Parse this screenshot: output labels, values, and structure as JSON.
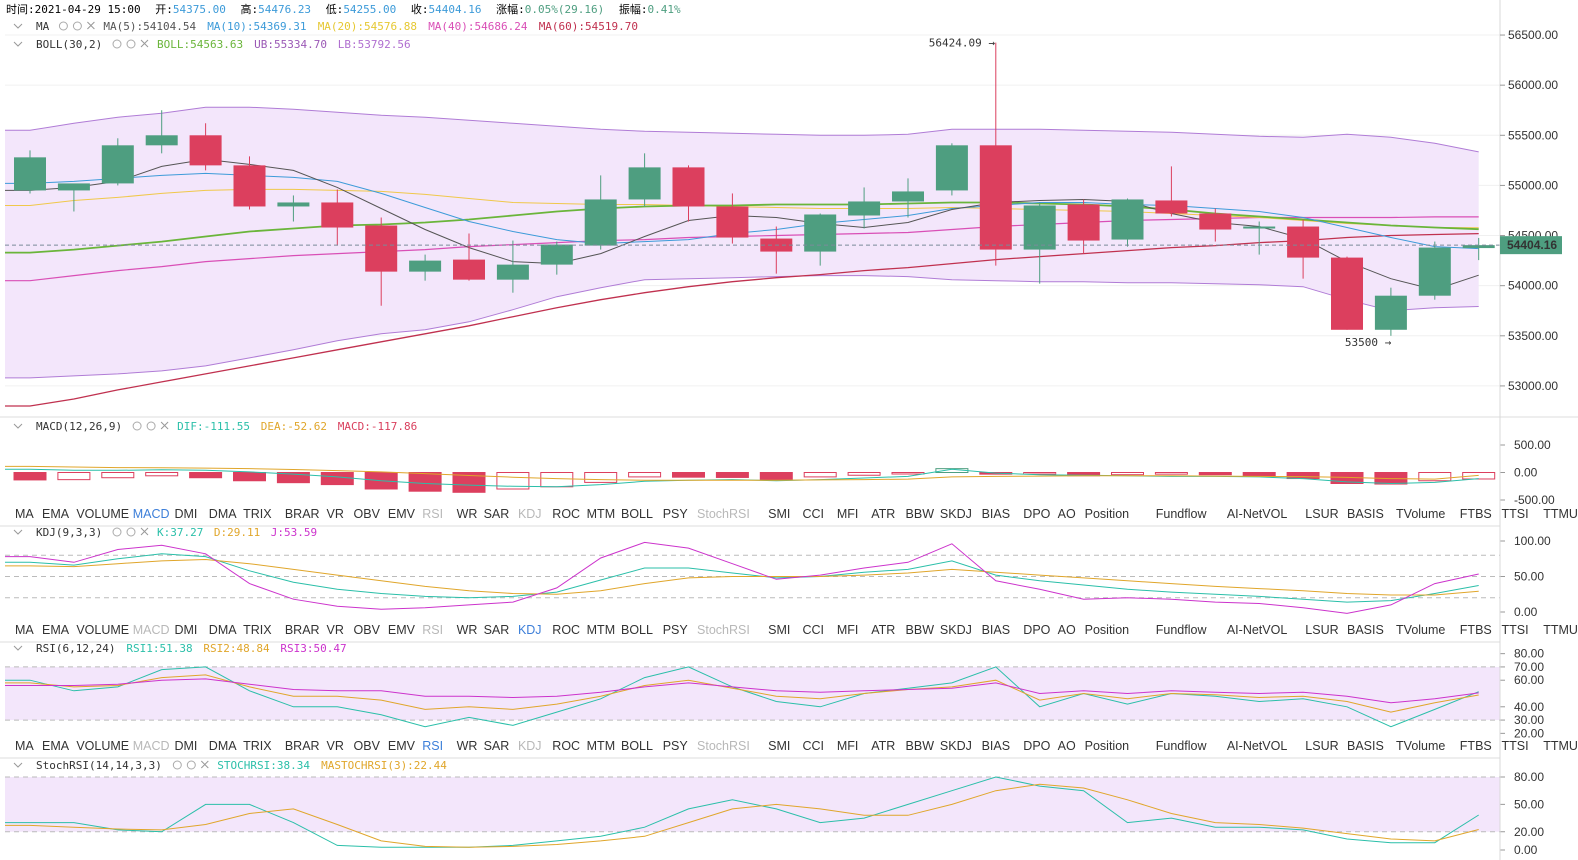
{
  "header": {
    "time_label": "时间:",
    "time": "2021-04-29 15:00",
    "open_label": "开:",
    "open": "54375.00",
    "high_label": "高:",
    "high": "54476.23",
    "low_label": "低:",
    "low": "54255.00",
    "close_label": "收:",
    "close": "54404.16",
    "change_label": "涨幅:",
    "change": "0.05%(29.16)",
    "amplitude_label": "振幅:",
    "amplitude": "0.41%"
  },
  "ma_legend": {
    "name": "MA",
    "items": [
      {
        "text": "MA(5):54104.54",
        "color": "#555555"
      },
      {
        "text": "MA(10):54369.31",
        "color": "#3d9bd9"
      },
      {
        "text": "MA(20):54576.88",
        "color": "#e6c832"
      },
      {
        "text": "MA(40):54686.24",
        "color": "#d94fb6"
      },
      {
        "text": "MA(60):54519.70",
        "color": "#c0314f"
      }
    ]
  },
  "boll_legend": {
    "name": "BOLL(30,2)",
    "items": [
      {
        "text": "BOLL:54563.63",
        "color": "#6ab53a"
      },
      {
        "text": "UB:55334.70",
        "color": "#9b59b6"
      },
      {
        "text": "LB:53792.56",
        "color": "#b06fd0"
      }
    ]
  },
  "price_axis": {
    "ticks": [
      "56500.00",
      "56000.00",
      "55500.00",
      "55000.00",
      "54500.00",
      "54000.00",
      "53500.00",
      "53000.00"
    ],
    "current_price": "54404.16",
    "high_marker": "56424.09 →",
    "low_marker": "53500 →"
  },
  "macd_legend": {
    "name": "MACD(12,26,9)",
    "items": [
      {
        "text": "DIF:-111.55",
        "color": "#2bbfa9"
      },
      {
        "text": "DEA:-52.62",
        "color": "#e0a62b"
      },
      {
        "text": "MACD:-117.86",
        "color": "#d93f5d"
      }
    ],
    "axis": [
      "500.00",
      "0.00",
      "-500.00"
    ]
  },
  "kdj_legend": {
    "name": "KDJ(9,3,3)",
    "items": [
      {
        "text": "K:37.27",
        "color": "#2bbfa9"
      },
      {
        "text": "D:29.11",
        "color": "#e0a62b"
      },
      {
        "text": "J:53.59",
        "color": "#cc33cc"
      }
    ],
    "axis": [
      "100.00",
      "50.00",
      "0.00"
    ]
  },
  "rsi_legend": {
    "name": "RSI(6,12,24)",
    "items": [
      {
        "text": "RSI1:51.38",
        "color": "#2bbfa9"
      },
      {
        "text": "RSI2:48.84",
        "color": "#e0a62b"
      },
      {
        "text": "RSI3:50.47",
        "color": "#cc33cc"
      }
    ],
    "axis": [
      "80.00",
      "70.00",
      "60.00",
      "40.00",
      "30.00",
      "20.00"
    ]
  },
  "stochrsi_legend": {
    "name": "StochRSI(14,14,3,3)",
    "items": [
      {
        "text": "STOCHRSI:38.34",
        "color": "#2bbfa9"
      },
      {
        "text": "MASTOCHRSI(3):22.44",
        "color": "#e0a62b"
      }
    ],
    "axis": [
      "80.00",
      "50.00",
      "20.00",
      "0.00"
    ]
  },
  "indicator_tabs": [
    "MA",
    "EMA",
    "VOLUME",
    "MACD",
    "DMI",
    "DMA",
    "TRIX",
    "BRAR",
    "VR",
    "OBV",
    "EMV",
    "RSI",
    "WR",
    "SAR",
    "KDJ",
    "ROC",
    "MTM",
    "BOLL",
    "PSY",
    "StochRSI",
    "SMI",
    "CCI",
    "MFI",
    "ATR",
    "BBW",
    "SKDJ",
    "BIAS",
    "DPO",
    "AO",
    "Position",
    "Fundflow",
    "AI-NetVOL",
    "LSUR",
    "BASIS",
    "TVolume",
    "FTBS",
    "TTSI",
    "TTMU"
  ],
  "tab_rows": [
    {
      "active": "MACD",
      "disabled": [
        "RSI",
        "KDJ",
        "StochRSI"
      ]
    },
    {
      "active": "KDJ",
      "disabled": [
        "MACD",
        "RSI",
        "StochRSI"
      ]
    },
    {
      "active": "RSI",
      "disabled": [
        "MACD",
        "KDJ",
        "StochRSI"
      ]
    }
  ],
  "colors": {
    "up": "#4e9e80",
    "down": "#dc3f5e",
    "band_fill": "#f3e6fb",
    "accent": "#3d7fd9"
  },
  "chart_data": {
    "type": "candlestick",
    "candles": [
      {
        "o": 54950,
        "h": 55350,
        "l": 54920,
        "c": 55280
      },
      {
        "o": 54950,
        "h": 55010,
        "l": 54740,
        "c": 55020
      },
      {
        "o": 55020,
        "h": 55470,
        "l": 55000,
        "c": 55400
      },
      {
        "o": 55400,
        "h": 55750,
        "l": 55320,
        "c": 55500
      },
      {
        "o": 55500,
        "h": 55620,
        "l": 55150,
        "c": 55200
      },
      {
        "o": 55200,
        "h": 55290,
        "l": 54760,
        "c": 54790
      },
      {
        "o": 54790,
        "h": 54900,
        "l": 54640,
        "c": 54830
      },
      {
        "o": 54830,
        "h": 54960,
        "l": 54400,
        "c": 54580
      },
      {
        "o": 54600,
        "h": 54680,
        "l": 53800,
        "c": 54140
      },
      {
        "o": 54140,
        "h": 54310,
        "l": 54050,
        "c": 54250
      },
      {
        "o": 54260,
        "h": 54520,
        "l": 54050,
        "c": 54060
      },
      {
        "o": 54060,
        "h": 54450,
        "l": 53930,
        "c": 54210
      },
      {
        "o": 54210,
        "h": 54440,
        "l": 54110,
        "c": 54410
      },
      {
        "o": 54400,
        "h": 55100,
        "l": 54360,
        "c": 54860
      },
      {
        "o": 54860,
        "h": 55320,
        "l": 54790,
        "c": 55180
      },
      {
        "o": 55180,
        "h": 55200,
        "l": 54640,
        "c": 54790
      },
      {
        "o": 54790,
        "h": 54920,
        "l": 54420,
        "c": 54480
      },
      {
        "o": 54470,
        "h": 54590,
        "l": 54120,
        "c": 54340
      },
      {
        "o": 54340,
        "h": 54720,
        "l": 54200,
        "c": 54710
      },
      {
        "o": 54700,
        "h": 54980,
        "l": 54570,
        "c": 54840
      },
      {
        "o": 54840,
        "h": 55070,
        "l": 54680,
        "c": 54940
      },
      {
        "o": 54950,
        "h": 55420,
        "l": 54900,
        "c": 55400
      },
      {
        "o": 55400,
        "h": 56424.09,
        "l": 54200,
        "c": 54360
      },
      {
        "o": 54360,
        "h": 54830,
        "l": 54020,
        "c": 54800
      },
      {
        "o": 54810,
        "h": 54860,
        "l": 54320,
        "c": 54450
      },
      {
        "o": 54460,
        "h": 54870,
        "l": 54390,
        "c": 54860
      },
      {
        "o": 54850,
        "h": 55190,
        "l": 54690,
        "c": 54720
      },
      {
        "o": 54720,
        "h": 54770,
        "l": 54440,
        "c": 54560
      },
      {
        "o": 54570,
        "h": 54640,
        "l": 54310,
        "c": 54590
      },
      {
        "o": 54590,
        "h": 54660,
        "l": 54070,
        "c": 54280
      },
      {
        "o": 54280,
        "h": 54290,
        "l": 53560,
        "c": 53560
      },
      {
        "o": 53560,
        "h": 53980,
        "l": 53500,
        "c": 53900
      },
      {
        "o": 53900,
        "h": 54440,
        "l": 53860,
        "c": 54380
      },
      {
        "o": 54375,
        "h": 54476.23,
        "l": 54255,
        "c": 54404.16
      }
    ],
    "ma5": [
      54950,
      54980,
      55040,
      55190,
      55260,
      55210,
      55150,
      54980,
      54770,
      54560,
      54380,
      54240,
      54220,
      54320,
      54490,
      54650,
      54700,
      54680,
      54620,
      54580,
      54630,
      54760,
      54830,
      54850,
      54860,
      54840,
      54720,
      54630,
      54590,
      54470,
      54240,
      54070,
      53960,
      54104.54
    ],
    "ma10": [
      55020,
      55040,
      55070,
      55100,
      55120,
      55100,
      55080,
      55040,
      54920,
      54780,
      54640,
      54540,
      54460,
      54420,
      54440,
      54460,
      54520,
      54560,
      54620,
      54660,
      54700,
      54770,
      54800,
      54830,
      54830,
      54810,
      54800,
      54770,
      54740,
      54680,
      54580,
      54480,
      54390,
      54369.31
    ],
    "ma20": [
      54800,
      54850,
      54880,
      54920,
      54950,
      54960,
      54960,
      54950,
      54940,
      54910,
      54870,
      54830,
      54820,
      54810,
      54810,
      54800,
      54790,
      54780,
      54770,
      54770,
      54770,
      54780,
      54770,
      54760,
      54750,
      54740,
      54720,
      54700,
      54680,
      54650,
      54620,
      54600,
      54580,
      54576.88
    ],
    "boll_mid": [
      54330,
      54360,
      54400,
      54440,
      54490,
      54540,
      54570,
      54600,
      54610,
      54630,
      54660,
      54700,
      54740,
      54770,
      54790,
      54800,
      54800,
      54810,
      54810,
      54810,
      54820,
      54830,
      54830,
      54820,
      54810,
      54790,
      54760,
      54720,
      54690,
      54660,
      54630,
      54600,
      54580,
      54563.63
    ],
    "boll_ub": [
      55550,
      55620,
      55680,
      55720,
      55780,
      55780,
      55760,
      55730,
      55700,
      55680,
      55650,
      55620,
      55590,
      55560,
      55540,
      55530,
      55520,
      55510,
      55500,
      55500,
      55510,
      55560,
      55560,
      55560,
      55550,
      55540,
      55530,
      55510,
      55490,
      55480,
      55510,
      55480,
      55420,
      55334.7
    ],
    "boll_lb": [
      53080,
      53100,
      53120,
      53150,
      53200,
      53280,
      53360,
      53450,
      53520,
      53560,
      53640,
      53760,
      53890,
      53980,
      54060,
      54070,
      54080,
      54090,
      54100,
      54100,
      54090,
      54060,
      54050,
      54040,
      54040,
      54030,
      54030,
      54020,
      54010,
      53990,
      53860,
      53750,
      53780,
      53792.56
    ],
    "ma40": [
      54050,
      54100,
      54150,
      54190,
      54240,
      54270,
      54300,
      54320,
      54340,
      54360,
      54390,
      54410,
      54430,
      54450,
      54460,
      54480,
      54490,
      54500,
      54510,
      54520,
      54530,
      54560,
      54590,
      54610,
      54630,
      54650,
      54660,
      54670,
      54680,
      54680,
      54680,
      54680,
      54686,
      54686.24
    ],
    "ma60": [
      52800,
      52870,
      52960,
      53040,
      53120,
      53200,
      53280,
      53360,
      53440,
      53520,
      53600,
      53690,
      53780,
      53860,
      53930,
      53990,
      54040,
      54080,
      54110,
      54150,
      54180,
      54220,
      54260,
      54290,
      54320,
      54350,
      54380,
      54400,
      54430,
      54450,
      54480,
      54500,
      54510,
      54519.7
    ],
    "macd": {
      "hist": [
        -135,
        -130,
        -95,
        -60,
        -95,
        -150,
        -185,
        -220,
        -300,
        -340,
        -360,
        -300,
        -260,
        -180,
        -80,
        -85,
        -90,
        -130,
        -80,
        -50,
        -20,
        70,
        -30,
        -20,
        -60,
        -40,
        -30,
        -40,
        -60,
        -110,
        -200,
        -210,
        -150,
        -117.86
      ],
      "dif": [
        60,
        40,
        40,
        50,
        40,
        10,
        -30,
        -80,
        -150,
        -200,
        -230,
        -250,
        -260,
        -220,
        -160,
        -140,
        -130,
        -150,
        -130,
        -100,
        -70,
        60,
        -10,
        -40,
        -50,
        -60,
        -70,
        -70,
        -80,
        -110,
        -170,
        -200,
        -180,
        -111.55
      ],
      "dea": [
        110,
        100,
        90,
        85,
        80,
        70,
        55,
        35,
        10,
        -20,
        -55,
        -85,
        -110,
        -130,
        -140,
        -140,
        -140,
        -140,
        -135,
        -130,
        -120,
        -80,
        -70,
        -65,
        -60,
        -60,
        -60,
        -65,
        -70,
        -75,
        -90,
        -110,
        -120,
        -52.62
      ]
    },
    "kdj": {
      "k": [
        70,
        66,
        75,
        82,
        78,
        58,
        42,
        32,
        26,
        22,
        20,
        22,
        28,
        45,
        62,
        62,
        55,
        48,
        50,
        56,
        60,
        72,
        52,
        44,
        38,
        32,
        28,
        25,
        22,
        18,
        14,
        16,
        26,
        37.27
      ],
      "d": [
        65,
        64,
        68,
        72,
        74,
        68,
        60,
        52,
        44,
        36,
        30,
        26,
        25,
        30,
        40,
        48,
        50,
        50,
        50,
        52,
        55,
        60,
        56,
        52,
        48,
        44,
        40,
        36,
        33,
        30,
        26,
        24,
        24,
        29.11
      ],
      "j": [
        78,
        70,
        88,
        94,
        82,
        40,
        18,
        8,
        4,
        6,
        10,
        14,
        34,
        76,
        98,
        90,
        68,
        46,
        52,
        62,
        70,
        96,
        44,
        32,
        18,
        20,
        18,
        14,
        12,
        6,
        -2,
        10,
        40,
        53.59
      ]
    },
    "rsi": {
      "rsi1": [
        60,
        52,
        55,
        68,
        70,
        52,
        40,
        40,
        34,
        25,
        32,
        26,
        36,
        46,
        62,
        70,
        55,
        44,
        40,
        50,
        54,
        58,
        70,
        40,
        50,
        42,
        50,
        48,
        44,
        46,
        40,
        25,
        38,
        51.38
      ],
      "rsi2": [
        58,
        55,
        56,
        62,
        64,
        55,
        48,
        48,
        45,
        38,
        40,
        38,
        42,
        48,
        56,
        60,
        54,
        48,
        46,
        50,
        53,
        55,
        60,
        45,
        50,
        46,
        50,
        49,
        47,
        48,
        44,
        36,
        43,
        48.84
      ],
      "rsi3": [
        56,
        56,
        57,
        60,
        61,
        57,
        53,
        52,
        52,
        48,
        48,
        47,
        48,
        51,
        55,
        58,
        55,
        52,
        51,
        52,
        53,
        54,
        58,
        50,
        52,
        50,
        52,
        51,
        50,
        51,
        48,
        43,
        46,
        50.47
      ]
    },
    "stochrsi": {
      "stoch": [
        30,
        30,
        22,
        20,
        50,
        50,
        30,
        5,
        3,
        3,
        3,
        5,
        10,
        15,
        25,
        45,
        55,
        45,
        30,
        35,
        50,
        65,
        80,
        70,
        65,
        30,
        35,
        25,
        25,
        22,
        12,
        8,
        8,
        38.34
      ],
      "ma": [
        27,
        25,
        23,
        22,
        28,
        40,
        45,
        28,
        10,
        4,
        3,
        4,
        6,
        10,
        15,
        30,
        45,
        50,
        45,
        38,
        38,
        50,
        65,
        72,
        68,
        55,
        40,
        30,
        28,
        24,
        18,
        12,
        10,
        22.44
      ]
    },
    "price_range": [
      52700,
      56650
    ],
    "x_label": "",
    "y_label": ""
  }
}
